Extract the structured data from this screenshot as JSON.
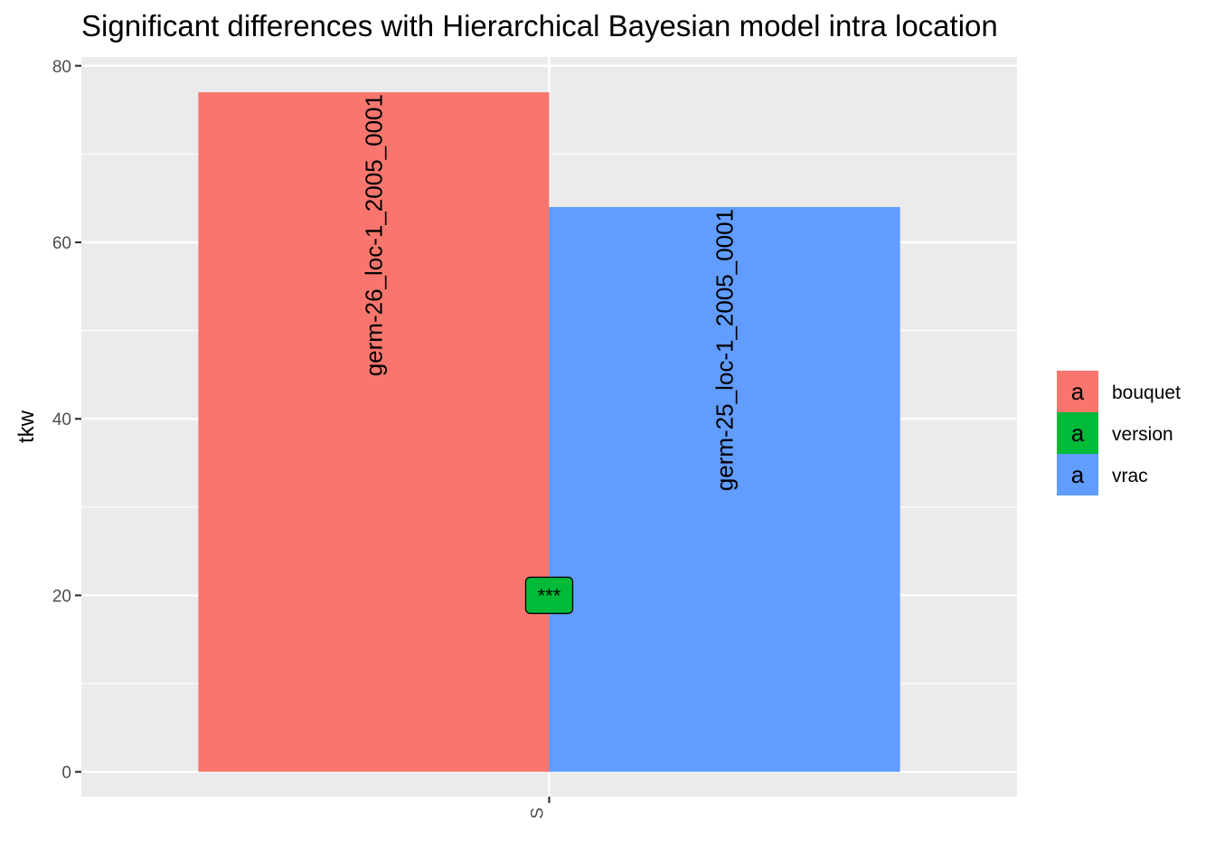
{
  "chart_data": {
    "type": "bar",
    "title": "Significant differences with Hierarchical Bayesian model intra location",
    "xlabel": "",
    "ylabel": "tkw",
    "categories": [
      "S"
    ],
    "ylim": [
      -2.8,
      81
    ],
    "yticks": [
      0,
      20,
      40,
      60,
      80
    ],
    "grid": true,
    "legend_position": "right",
    "legend_key_glyph": "a",
    "legend": [
      {
        "name": "bouquet",
        "color": "#F8766D"
      },
      {
        "name": "version",
        "color": "#00BA38"
      },
      {
        "name": "vrac",
        "color": "#619CFF"
      }
    ],
    "bars": [
      {
        "category": "S",
        "group": "bouquet",
        "value": 77,
        "label": "germ-26_loc-1_2005_0001",
        "color": "#F8766D"
      },
      {
        "category": "S",
        "group": "vrac",
        "value": 64,
        "label": "germ-25_loc-1_2005_0001",
        "color": "#619CFF"
      }
    ],
    "annotation": {
      "text": "***",
      "y": 20,
      "color": "#00BA38"
    }
  }
}
